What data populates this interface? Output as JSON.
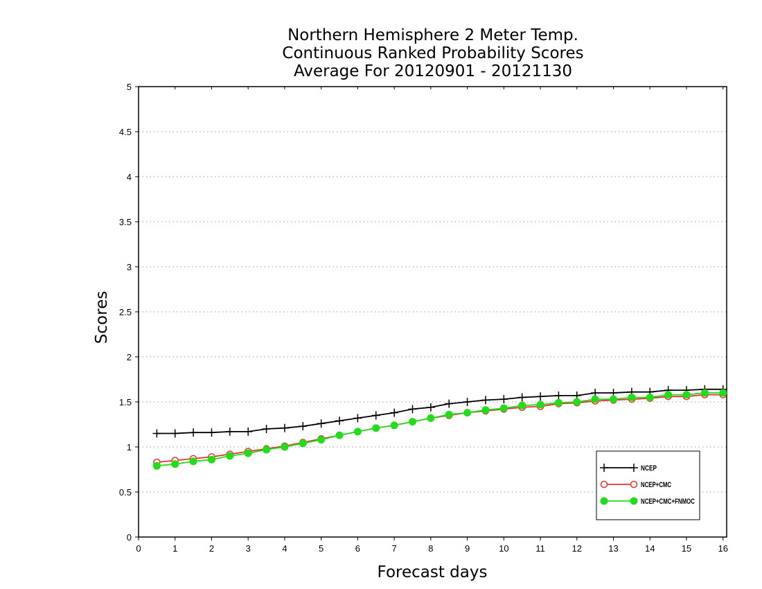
{
  "chart_data": {
    "type": "line",
    "title": "Northern Hemisphere 2 Meter Temp.",
    "subtitle": "Continuous Ranked Probability Scores",
    "subtitle2": "Average For 20120901 - 20121130",
    "xlabel": "Forecast days",
    "ylabel": "Scores",
    "xlim": [
      0,
      16.1
    ],
    "ylim": [
      0,
      5
    ],
    "xticks": [
      "0",
      "1",
      "2",
      "3",
      "4",
      "5",
      "6",
      "7",
      "8",
      "9",
      "10",
      "11",
      "12",
      "13",
      "14",
      "15",
      "16"
    ],
    "yticks": [
      "0",
      "0.5",
      "1",
      "1.5",
      "2",
      "2.5",
      "3",
      "3.5",
      "4",
      "4.5",
      "5"
    ],
    "grid": true,
    "legend_position": "bottom-right",
    "x": [
      0.5,
      1,
      1.5,
      2,
      2.5,
      3,
      3.5,
      4,
      4.5,
      5,
      5.5,
      6,
      6.5,
      7,
      7.5,
      8,
      8.5,
      9,
      9.5,
      10,
      10.5,
      11,
      11.5,
      12,
      12.5,
      13,
      13.5,
      14,
      14.5,
      15,
      15.5,
      16
    ],
    "series": [
      {
        "name": "NCEP",
        "color": "#000000",
        "marker": "plus",
        "values": [
          1.15,
          1.15,
          1.16,
          1.16,
          1.17,
          1.17,
          1.2,
          1.21,
          1.23,
          1.26,
          1.29,
          1.32,
          1.35,
          1.38,
          1.42,
          1.44,
          1.48,
          1.5,
          1.52,
          1.53,
          1.55,
          1.56,
          1.57,
          1.57,
          1.6,
          1.6,
          1.61,
          1.61,
          1.63,
          1.63,
          1.64,
          1.64
        ]
      },
      {
        "name": "NCEP+CMC",
        "color": "#e8302a",
        "marker": "open-circle",
        "values": [
          0.83,
          0.85,
          0.87,
          0.89,
          0.92,
          0.95,
          0.98,
          1.01,
          1.05,
          1.09,
          1.13,
          1.17,
          1.21,
          1.24,
          1.28,
          1.32,
          1.35,
          1.38,
          1.4,
          1.42,
          1.44,
          1.45,
          1.48,
          1.49,
          1.51,
          1.52,
          1.53,
          1.54,
          1.56,
          1.56,
          1.58,
          1.58
        ]
      },
      {
        "name": "NCEP+CMC+FNMOC",
        "color": "#22dd1a",
        "marker": "filled-circle",
        "values": [
          0.79,
          0.81,
          0.84,
          0.86,
          0.9,
          0.93,
          0.97,
          1.0,
          1.04,
          1.08,
          1.13,
          1.17,
          1.21,
          1.24,
          1.28,
          1.32,
          1.36,
          1.38,
          1.41,
          1.43,
          1.46,
          1.47,
          1.49,
          1.5,
          1.53,
          1.53,
          1.55,
          1.55,
          1.58,
          1.58,
          1.6,
          1.6
        ]
      }
    ]
  }
}
